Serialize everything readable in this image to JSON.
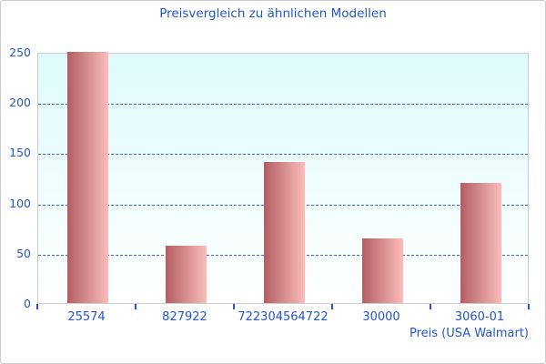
{
  "chart_data": {
    "type": "bar",
    "title": "Preisvergleich zu ähnlichen Modellen",
    "categories": [
      "25574",
      "827922",
      "722304564722",
      "30000",
      "3060-01"
    ],
    "values": [
      250,
      57,
      140,
      64,
      120
    ],
    "xlabel": "Preis (USA Walmart)",
    "ylabel": "",
    "ylim": [
      0,
      250
    ],
    "yticks": [
      0,
      50,
      100,
      150,
      200,
      250
    ],
    "grid": true,
    "grid_style": "dashed-horizontal",
    "legend": "none",
    "colors": {
      "title_text": "#2356c7",
      "axis_text": "#2356c7",
      "gridline": "#3a67cf",
      "tick_mark": "#2356c7",
      "bar_gradient_left": "#b25e63",
      "bar_gradient_right": "#fbbcba",
      "plot_bg_top": "#defbfc",
      "plot_bg_bottom": "#ffffff",
      "plot_border": "#cccccc",
      "frame_border": "#cccccc"
    }
  }
}
